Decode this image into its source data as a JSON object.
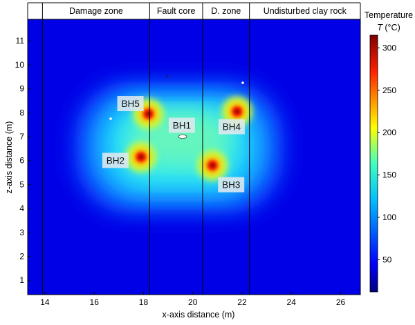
{
  "chart_data": {
    "type": "heatmap",
    "title": "",
    "xlabel": "x-axis distance (m)",
    "ylabel": "z-axis distance (m)",
    "xlim": [
      13.3,
      26.8
    ],
    "ylim": [
      0.4,
      11.9
    ],
    "x_ticks": [
      14,
      16,
      18,
      20,
      22,
      24,
      26
    ],
    "y_ticks": [
      1,
      2,
      3,
      4,
      5,
      6,
      7,
      8,
      9,
      10,
      11
    ],
    "zones": [
      {
        "label": "Damage zone",
        "x_start": 13.9,
        "x_end": 18.25
      },
      {
        "label": "Fault core",
        "x_start": 18.25,
        "x_end": 20.4
      },
      {
        "label": "D. zone",
        "x_start": 20.4,
        "x_end": 22.3
      },
      {
        "label": "Undisturbed clay rock",
        "x_start": 22.3,
        "x_end": 26.8
      }
    ],
    "zone_boundaries_x": [
      13.9,
      18.25,
      20.4,
      22.3
    ],
    "boreholes": [
      {
        "label": "BH5",
        "x": 18.2,
        "z": 7.95,
        "peak_temperature": 310
      },
      {
        "label": "BH1",
        "x": 19.5,
        "z": 7.1,
        "peak_temperature": 100
      },
      {
        "label": "BH4",
        "x": 21.8,
        "z": 8.05,
        "peak_temperature": 310
      },
      {
        "label": "BH2",
        "x": 17.9,
        "z": 6.15,
        "peak_temperature": 310
      },
      {
        "label": "BH3",
        "x": 20.8,
        "z": 5.8,
        "peak_temperature": 310
      }
    ],
    "colorbar": {
      "title": "Temperature",
      "unit_label_italic": "T",
      "unit_label_rest": " (°C)",
      "min": 12,
      "max": 315,
      "ticks": [
        50,
        100,
        150,
        200,
        250,
        300
      ],
      "colormap": "jet",
      "colors": [
        "#00007f",
        "#0000ff",
        "#007fff",
        "#00ffff",
        "#7fff7f",
        "#ffff00",
        "#ff7f00",
        "#ff0000",
        "#7f0000"
      ]
    },
    "grid": false
  }
}
